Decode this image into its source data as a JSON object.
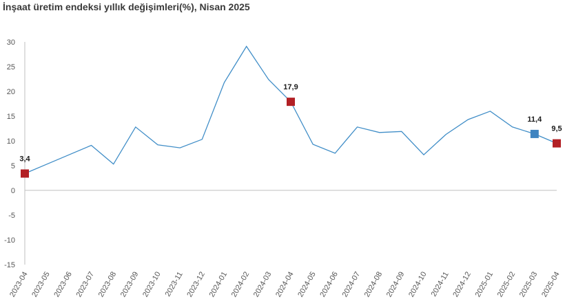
{
  "chart_data": {
    "type": "line",
    "title": "İnşaat üretim endeksi yıllık değişimleri(%), Nisan 2025",
    "x": [
      "2023-04",
      "2023-05",
      "2023-06",
      "2023-07",
      "2023-08",
      "2023-09",
      "2023-10",
      "2023-11",
      "2023-12",
      "2024-01",
      "2024-02",
      "2024-03",
      "2024-04",
      "2024-05",
      "2024-06",
      "2024-07",
      "2024-08",
      "2024-09",
      "2024-10",
      "2024-11",
      "2024-12",
      "2025-01",
      "2025-02",
      "2025-03",
      "2025-04"
    ],
    "series": [
      {
        "values": [
          3.4,
          5.3,
          7.2,
          9.1,
          5.3,
          12.8,
          9.2,
          8.6,
          10.3,
          21.8,
          29.1,
          22.4,
          17.9,
          9.3,
          7.5,
          12.8,
          11.7,
          11.9,
          7.2,
          11.3,
          14.3,
          16.0,
          12.8,
          11.4,
          9.5
        ]
      }
    ],
    "ylim": [
      -15,
      30
    ],
    "yticks": [
      30,
      25,
      20,
      15,
      10,
      5,
      0,
      -5,
      -10,
      -15
    ],
    "grid": false,
    "line_color": "#3f8dc7",
    "highlights": [
      {
        "index": 0,
        "label": "3,4",
        "color": "#b22025"
      },
      {
        "index": 12,
        "label": "17,9",
        "color": "#b22025"
      },
      {
        "index": 23,
        "label": "11,4",
        "color": "#3f84c0"
      },
      {
        "index": 24,
        "label": "9,5",
        "color": "#b22025"
      }
    ]
  }
}
